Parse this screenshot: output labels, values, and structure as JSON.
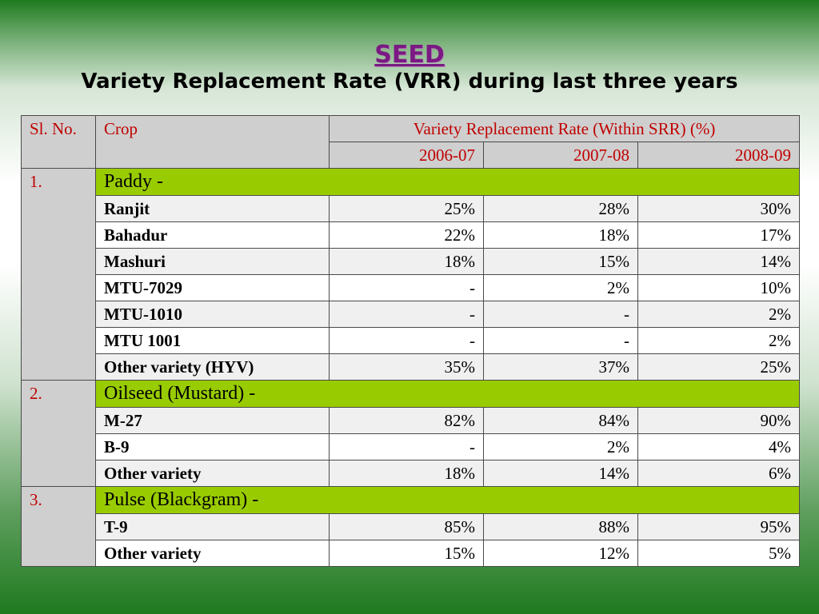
{
  "slide": {
    "heading": "SEED",
    "title": "Variety Replacement Rate (VRR) during last three years"
  },
  "table": {
    "headers": {
      "sl_no": "Sl. No.",
      "crop": "Crop",
      "rate": "Variety Replacement Rate (Within SRR) (%)",
      "years": [
        "2006-07",
        "2007-08",
        "2008-09"
      ]
    },
    "groups": [
      {
        "sl": "1.",
        "label": "Paddy -",
        "rows": [
          {
            "crop": "Ranjit",
            "v1": "25%",
            "v2": "28%",
            "v3": "30%"
          },
          {
            "crop": "Bahadur",
            "v1": "22%",
            "v2": "18%",
            "v3": "17%"
          },
          {
            "crop": "Mashuri",
            "v1": "18%",
            "v2": "15%",
            "v3": "14%"
          },
          {
            "crop": "MTU-7029",
            "v1": "-",
            "v2": "2%",
            "v3": "10%"
          },
          {
            "crop": "MTU-1010",
            "v1": "-",
            "v2": "-",
            "v3": "2%"
          },
          {
            "crop": "MTU 1001",
            "v1": "-",
            "v2": "-",
            "v3": "2%"
          },
          {
            "crop": "Other variety (HYV)",
            "v1": "35%",
            "v2": "37%",
            "v3": "25%"
          }
        ]
      },
      {
        "sl": "2.",
        "label": "Oilseed (Mustard) -",
        "rows": [
          {
            "crop": "M-27",
            "v1": "82%",
            "v2": "84%",
            "v3": "90%"
          },
          {
            "crop": "B-9",
            "v1": "-",
            "v2": "2%",
            "v3": "4%"
          },
          {
            "crop": "Other variety",
            "v1": "18%",
            "v2": "14%",
            "v3": "6%"
          }
        ]
      },
      {
        "sl": "3.",
        "label": "Pulse (Blackgram) -",
        "rows": [
          {
            "crop": "T-9",
            "v1": "85%",
            "v2": "88%",
            "v3": "95%"
          },
          {
            "crop": "Other variety",
            "v1": "15%",
            "v2": "12%",
            "v3": "5%"
          }
        ]
      }
    ]
  }
}
